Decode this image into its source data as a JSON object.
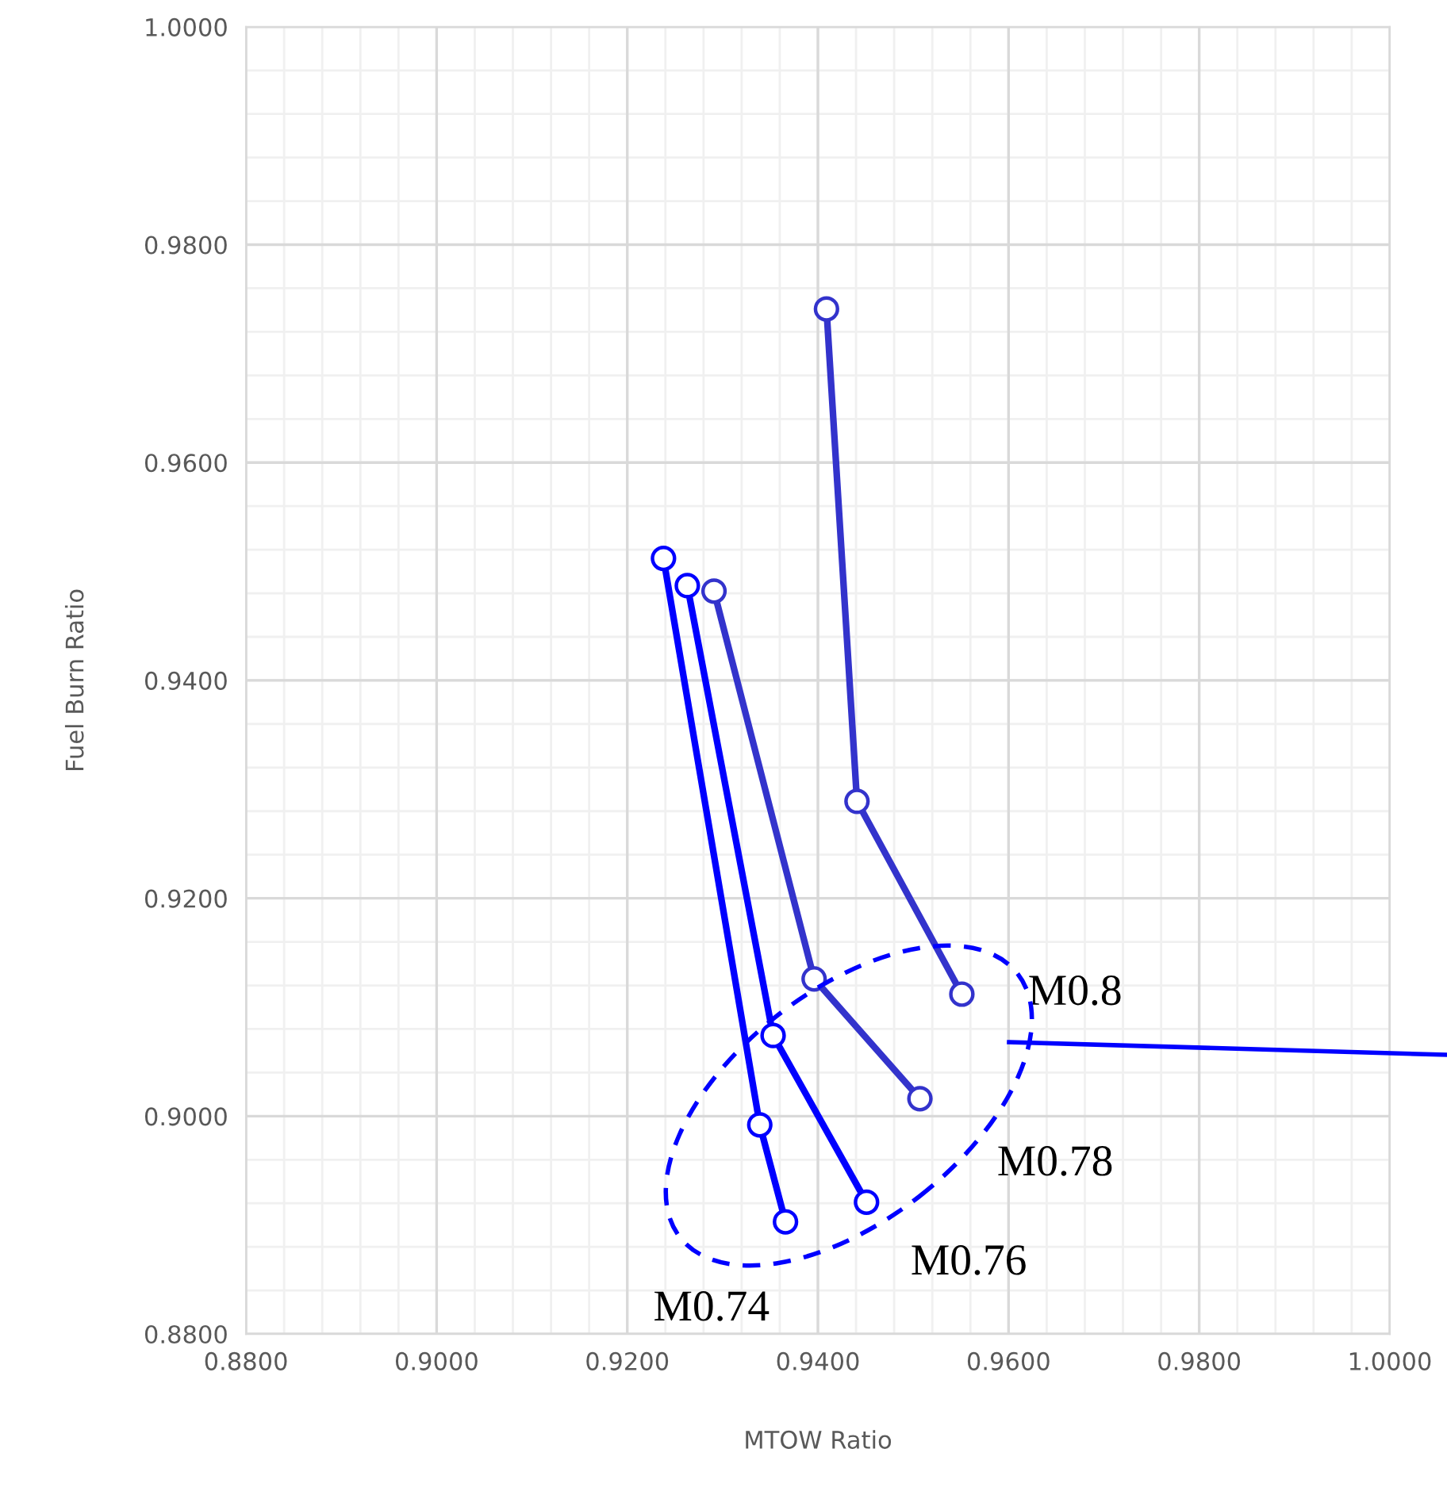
{
  "chart_data": {
    "type": "line",
    "xlabel": "MTOW Ratio",
    "ylabel": "Fuel Burn Ratio",
    "xlim": [
      0.88,
      1.0
    ],
    "ylim": [
      0.88,
      1.0
    ],
    "xticks": [
      {
        "value": 0.88,
        "label": "0.8800"
      },
      {
        "value": 0.9,
        "label": "0.9000"
      },
      {
        "value": 0.92,
        "label": "0.9200"
      },
      {
        "value": 0.94,
        "label": "0.9400"
      },
      {
        "value": 0.96,
        "label": "0.9600"
      },
      {
        "value": 0.98,
        "label": "0.9800"
      },
      {
        "value": 1.0,
        "label": "1.0000"
      }
    ],
    "yticks": [
      {
        "value": 0.88,
        "label": "0.8800"
      },
      {
        "value": 0.9,
        "label": "0.9000"
      },
      {
        "value": 0.92,
        "label": "0.9200"
      },
      {
        "value": 0.94,
        "label": "0.9400"
      },
      {
        "value": 0.96,
        "label": "0.9600"
      },
      {
        "value": 0.98,
        "label": "0.9800"
      },
      {
        "value": 1.0,
        "label": "1.0000"
      }
    ],
    "grid": true,
    "marker": "circle",
    "line_style": "solid",
    "series": [
      {
        "name": "M0.8",
        "color": "#3333cc",
        "x": [
          0.9409,
          0.9441,
          0.9551
        ],
        "values": [
          0.9741,
          0.9289,
          0.9112
        ]
      },
      {
        "name": "M0.78",
        "color": "#3333cc",
        "x": [
          0.9291,
          0.9396,
          0.9507
        ],
        "values": [
          0.9482,
          0.9126,
          0.9016
        ]
      },
      {
        "name": "M0.76",
        "color": "#0000ff",
        "x": [
          0.9263,
          0.9353,
          0.9451
        ],
        "values": [
          0.9487,
          0.9074,
          0.8921
        ]
      },
      {
        "name": "M0.74",
        "color": "#0000ff",
        "x": [
          0.9238,
          0.9339,
          0.9366
        ],
        "values": [
          0.9512,
          0.8992,
          0.8903
        ]
      }
    ]
  }
}
